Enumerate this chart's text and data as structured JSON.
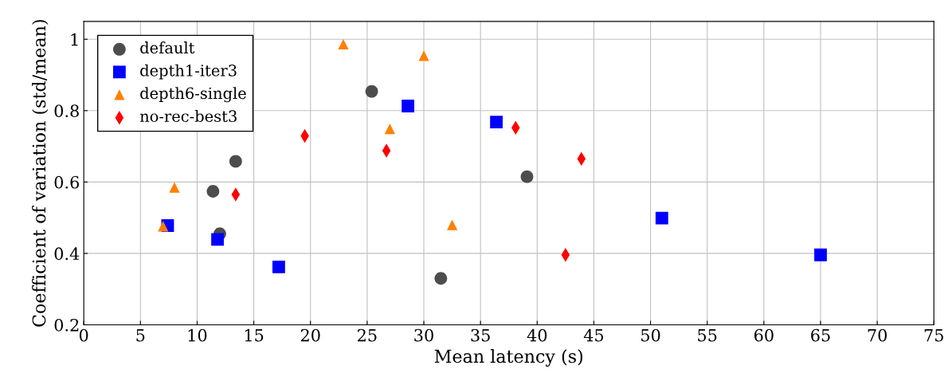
{
  "chart_data": {
    "type": "scatter",
    "xlabel": "Mean latency (s)",
    "ylabel": "Coefficient of variation (std/mean)",
    "xlim": [
      0,
      75
    ],
    "xticks": [
      0,
      5,
      10,
      15,
      20,
      25,
      30,
      35,
      40,
      45,
      50,
      55,
      60,
      65,
      70,
      75
    ],
    "ylim": [
      0.2,
      1.05
    ],
    "yticks": [
      0.2,
      0.4,
      0.6,
      0.8,
      1
    ],
    "grid": true,
    "legend": "top left",
    "series": [
      {
        "name": "default",
        "color": "#4d4d4d",
        "marker": "circle",
        "x": [
          13.4,
          11.4,
          12.0,
          25.4,
          39.1,
          31.5
        ],
        "values": [
          0.658,
          0.574,
          0.455,
          0.854,
          0.615,
          0.33
        ]
      },
      {
        "name": "depth1-iter3",
        "color": "#0000ff",
        "marker": "square",
        "x": [
          7.4,
          11.8,
          17.2,
          28.6,
          36.4,
          51.0,
          65.0
        ],
        "values": [
          0.478,
          0.439,
          0.362,
          0.813,
          0.768,
          0.499,
          0.396
        ]
      },
      {
        "name": "depth6-single",
        "color": "#ff8000",
        "marker": "triangle",
        "x": [
          7.0,
          8.0,
          22.9,
          27.0,
          30.0,
          32.5
        ],
        "values": [
          0.476,
          0.585,
          0.986,
          0.749,
          0.954,
          0.48
        ]
      },
      {
        "name": "no-rec-best3",
        "color": "#ff0000",
        "marker": "diamond",
        "x": [
          13.4,
          19.5,
          26.7,
          38.1,
          42.5,
          43.9
        ],
        "values": [
          0.565,
          0.729,
          0.688,
          0.752,
          0.396,
          0.665
        ]
      }
    ]
  }
}
